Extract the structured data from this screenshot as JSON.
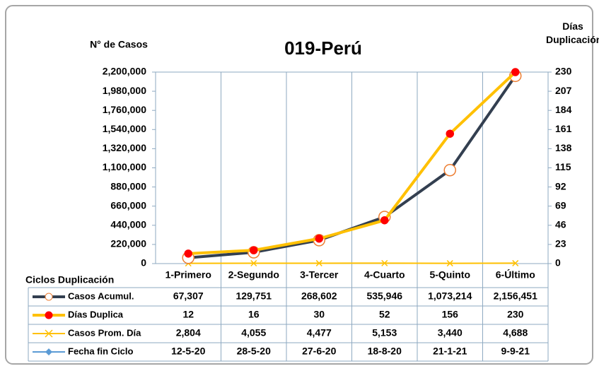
{
  "chart_data": {
    "type": "line",
    "title": "019-Perú",
    "y_label": "N° de Casos",
    "y2_label": "Días Duplicación",
    "x_label": "Ciclos Duplicación",
    "categories": [
      "1-Primero",
      "2-Segundo",
      "3-Tercer",
      "4-Cuarto",
      "5-Quinto",
      "6-Último"
    ],
    "series": [
      {
        "name": "Casos Acumul.",
        "color": "#333f50",
        "marker_face": "#ffffff",
        "marker_edge": "#ed7d31",
        "values": [
          67307,
          129751,
          268602,
          535946,
          1073214,
          2156451
        ],
        "value_labels": [
          "67,307",
          "129,751",
          "268,602",
          "535,946",
          "1,073,214",
          "2,156,451"
        ]
      },
      {
        "name": "Días Duplica",
        "color": "#ffc000",
        "marker_face": "#ff0000",
        "axis": "y2",
        "values": [
          12,
          16,
          30,
          52,
          156,
          230
        ]
      },
      {
        "name": "Casos Prom. Día",
        "color": "#ffc000",
        "values": [
          2804,
          4055,
          4477,
          5153,
          3440,
          4688
        ],
        "value_labels": [
          "2,804",
          "4,055",
          "4,477",
          "5,153",
          "3,440",
          "4,688"
        ]
      },
      {
        "name": "Fecha fin Ciclo",
        "color": "#5b9bd5",
        "values": [
          "12-5-20",
          "28-5-20",
          "27-6-20",
          "18-8-20",
          "21-1-21",
          "9-9-21"
        ]
      }
    ],
    "ylim": [
      0,
      2200000
    ],
    "yticks": [
      0,
      {
        "value": 220000,
        "label": "220,000"
      },
      {
        "value": 440000,
        "label": "440,000"
      },
      {
        "value": 660000,
        "label": "660,000"
      },
      {
        "value": 880000,
        "label": "880,000"
      },
      {
        "value": 1100000,
        "label": "1,100,000"
      },
      {
        "value": 1320000,
        "label": "1,320,000"
      },
      {
        "value": 1540000,
        "label": "1,540,000"
      },
      {
        "value": 1760000,
        "label": "1,760,000"
      },
      {
        "value": 1980000,
        "label": "1,980,000"
      },
      {
        "value": 2200000,
        "label": "2,200,000"
      }
    ],
    "y2lim": [
      0,
      230
    ],
    "y2ticks": [
      0,
      23,
      46,
      69,
      92,
      115,
      138,
      161,
      184,
      207,
      230
    ],
    "grid": false
  }
}
